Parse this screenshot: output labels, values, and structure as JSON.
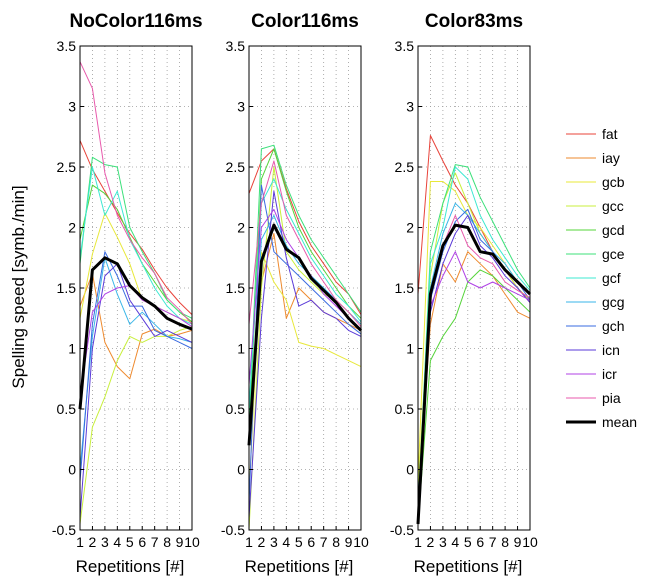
{
  "chart_data": {
    "type": "line",
    "ylabel": "Spelling speed  [symb./min]",
    "xlabel": "Repetitions  [#]",
    "ylim": [
      -0.5,
      3.5
    ],
    "yticks": [
      "-0.5",
      "0",
      "0.5",
      "1",
      "1.5",
      "2",
      "2.5",
      "3",
      "3.5"
    ],
    "x": [
      1,
      2,
      3,
      4,
      5,
      6,
      7,
      8,
      9,
      10
    ],
    "xticks": [
      "1",
      "2",
      "3",
      "4",
      "5",
      "6",
      "7",
      "8",
      "9",
      "10"
    ],
    "grid": true,
    "legend_position": "right",
    "series_names": [
      "fat",
      "iay",
      "gcb",
      "gcc",
      "gcd",
      "gce",
      "gcf",
      "gcg",
      "gch",
      "icn",
      "icr",
      "pia",
      "mean"
    ],
    "series_colors": [
      "#e8433a",
      "#ee8a2e",
      "#e8e83a",
      "#c8ef3c",
      "#55d43a",
      "#3ce07a",
      "#3ce8d2",
      "#3ab6e8",
      "#3a6be0",
      "#5a3ad8",
      "#b042e6",
      "#e85aac",
      "#000000"
    ],
    "panels": [
      {
        "title": "NoColor116ms",
        "series": [
          {
            "name": "fat",
            "values": [
              2.72,
              2.48,
              2.3,
              2.12,
              1.95,
              1.82,
              1.65,
              1.5,
              1.38,
              1.28
            ]
          },
          {
            "name": "iay",
            "values": [
              1.35,
              1.62,
              1.05,
              0.85,
              0.75,
              1.12,
              1.16,
              1.1,
              1.12,
              1.15
            ]
          },
          {
            "name": "gcb",
            "values": [
              1.25,
              1.78,
              2.12,
              1.92,
              1.7,
              1.4,
              1.35,
              1.3,
              1.25,
              1.22
            ]
          },
          {
            "name": "gcc",
            "values": [
              -0.45,
              0.35,
              0.6,
              0.9,
              1.1,
              1.05,
              1.1,
              1.1,
              1.15,
              1.18
            ]
          },
          {
            "name": "gcd",
            "values": [
              1.9,
              2.35,
              2.28,
              2.15,
              1.92,
              1.7,
              1.55,
              1.4,
              1.3,
              1.22
            ]
          },
          {
            "name": "gce",
            "values": [
              1.7,
              2.58,
              2.52,
              2.5,
              2.0,
              1.8,
              1.62,
              1.4,
              1.3,
              1.25
            ]
          },
          {
            "name": "gcf",
            "values": [
              1.75,
              2.5,
              2.1,
              2.3,
              1.9,
              1.7,
              1.5,
              1.35,
              1.25,
              1.2
            ]
          },
          {
            "name": "gcg",
            "values": [
              0.0,
              1.1,
              1.75,
              1.45,
              1.2,
              1.3,
              1.2,
              1.1,
              1.08,
              1.05
            ]
          },
          {
            "name": "gch",
            "values": [
              -0.1,
              1.2,
              1.8,
              1.6,
              1.35,
              1.35,
              1.15,
              1.1,
              1.05,
              1.0
            ]
          },
          {
            "name": "icn",
            "values": [
              -0.4,
              1.0,
              1.6,
              1.7,
              1.4,
              1.25,
              1.1,
              1.15,
              1.1,
              1.05
            ]
          },
          {
            "name": "icr",
            "values": [
              0.6,
              1.3,
              1.45,
              1.5,
              1.52,
              1.4,
              1.35,
              1.3,
              1.25,
              1.18
            ]
          },
          {
            "name": "pia",
            "values": [
              3.37,
              3.15,
              2.45,
              2.1,
              1.9,
              1.75,
              1.62,
              1.42,
              1.32,
              1.2
            ]
          },
          {
            "name": "mean",
            "values": [
              0.5,
              1.65,
              1.75,
              1.7,
              1.52,
              1.42,
              1.35,
              1.25,
              1.2,
              1.16
            ]
          }
        ]
      },
      {
        "title": "Color116ms",
        "series": [
          {
            "name": "fat",
            "values": [
              2.28,
              2.55,
              2.65,
              2.32,
              2.05,
              1.85,
              1.7,
              1.55,
              1.45,
              1.28
            ]
          },
          {
            "name": "iay",
            "values": [
              0.3,
              1.55,
              1.95,
              1.25,
              1.5,
              1.4,
              1.3,
              1.25,
              1.2,
              1.15
            ]
          },
          {
            "name": "gcb",
            "values": [
              -0.2,
              1.8,
              1.55,
              1.4,
              1.05,
              1.02,
              1.0,
              0.95,
              0.9,
              0.85
            ]
          },
          {
            "name": "gcc",
            "values": [
              -0.5,
              1.5,
              2.5,
              1.8,
              1.65,
              1.55,
              1.45,
              1.4,
              1.3,
              1.2
            ]
          },
          {
            "name": "gcd",
            "values": [
              0.3,
              2.4,
              2.65,
              2.3,
              2.0,
              1.8,
              1.65,
              1.5,
              1.35,
              1.25
            ]
          },
          {
            "name": "gce",
            "values": [
              0.4,
              2.65,
              2.68,
              2.35,
              2.1,
              1.9,
              1.75,
              1.6,
              1.45,
              1.3
            ]
          },
          {
            "name": "gcf",
            "values": [
              0.5,
              2.2,
              2.4,
              2.15,
              1.95,
              1.75,
              1.6,
              1.45,
              1.35,
              1.22
            ]
          },
          {
            "name": "gcg",
            "values": [
              0.2,
              1.9,
              2.1,
              1.85,
              1.7,
              1.6,
              1.5,
              1.4,
              1.3,
              1.2
            ]
          },
          {
            "name": "gch",
            "values": [
              -0.3,
              2.35,
              1.8,
              1.7,
              1.6,
              1.5,
              1.4,
              1.3,
              1.2,
              1.12
            ]
          },
          {
            "name": "icn",
            "values": [
              -0.4,
              1.25,
              2.3,
              1.75,
              1.35,
              1.4,
              1.3,
              1.25,
              1.15,
              1.1
            ]
          },
          {
            "name": "icr",
            "values": [
              0.7,
              2.0,
              2.15,
              1.9,
              1.75,
              1.6,
              1.45,
              1.35,
              1.25,
              1.15
            ]
          },
          {
            "name": "pia",
            "values": [
              1.2,
              2.2,
              2.55,
              2.1,
              1.9,
              1.7,
              1.55,
              1.4,
              1.3,
              1.18
            ]
          },
          {
            "name": "mean",
            "values": [
              0.2,
              1.72,
              2.02,
              1.82,
              1.75,
              1.58,
              1.48,
              1.38,
              1.25,
              1.15
            ]
          }
        ]
      },
      {
        "title": "Color83ms",
        "series": [
          {
            "name": "fat",
            "values": [
              1.45,
              2.76,
              2.55,
              2.35,
              2.2,
              2.0,
              1.8,
              1.65,
              1.5,
              1.38
            ]
          },
          {
            "name": "iay",
            "values": [
              -0.3,
              1.2,
              1.7,
              1.55,
              1.8,
              1.7,
              1.6,
              1.45,
              1.3,
              1.25
            ]
          },
          {
            "name": "gcb",
            "values": [
              -0.1,
              2.38,
              2.38,
              2.3,
              2.1,
              2.0,
              1.85,
              1.7,
              1.55,
              1.45
            ]
          },
          {
            "name": "gcc",
            "values": [
              -0.2,
              1.6,
              2.2,
              2.45,
              2.2,
              1.95,
              1.8,
              1.65,
              1.5,
              1.4
            ]
          },
          {
            "name": "gcd",
            "values": [
              -0.45,
              0.9,
              1.1,
              1.25,
              1.55,
              1.65,
              1.6,
              1.5,
              1.4,
              1.3
            ]
          },
          {
            "name": "gce",
            "values": [
              -0.4,
              1.8,
              2.2,
              2.52,
              2.5,
              2.25,
              2.05,
              1.85,
              1.65,
              1.5
            ]
          },
          {
            "name": "gcf",
            "values": [
              -0.35,
              1.7,
              2.0,
              2.5,
              2.4,
              2.1,
              1.9,
              1.75,
              1.6,
              1.48
            ]
          },
          {
            "name": "gcg",
            "values": [
              -0.3,
              1.5,
              1.95,
              2.2,
              2.1,
              1.95,
              1.8,
              1.7,
              1.55,
              1.45
            ]
          },
          {
            "name": "gch",
            "values": [
              -0.45,
              1.4,
              1.8,
              2.05,
              2.15,
              1.9,
              1.8,
              1.65,
              1.55,
              1.4
            ]
          },
          {
            "name": "icn",
            "values": [
              -0.45,
              1.3,
              1.7,
              1.95,
              2.1,
              1.85,
              1.75,
              1.6,
              1.5,
              1.38
            ]
          },
          {
            "name": "icr",
            "values": [
              -0.4,
              1.35,
              1.6,
              1.8,
              1.55,
              1.5,
              1.55,
              1.5,
              1.45,
              1.4
            ]
          },
          {
            "name": "pia",
            "values": [
              -0.35,
              1.45,
              1.85,
              2.1,
              1.85,
              1.75,
              1.7,
              1.55,
              1.48,
              1.42
            ]
          },
          {
            "name": "mean",
            "values": [
              -0.45,
              1.45,
              1.85,
              2.02,
              2.0,
              1.8,
              1.78,
              1.65,
              1.55,
              1.45
            ]
          }
        ]
      }
    ]
  }
}
